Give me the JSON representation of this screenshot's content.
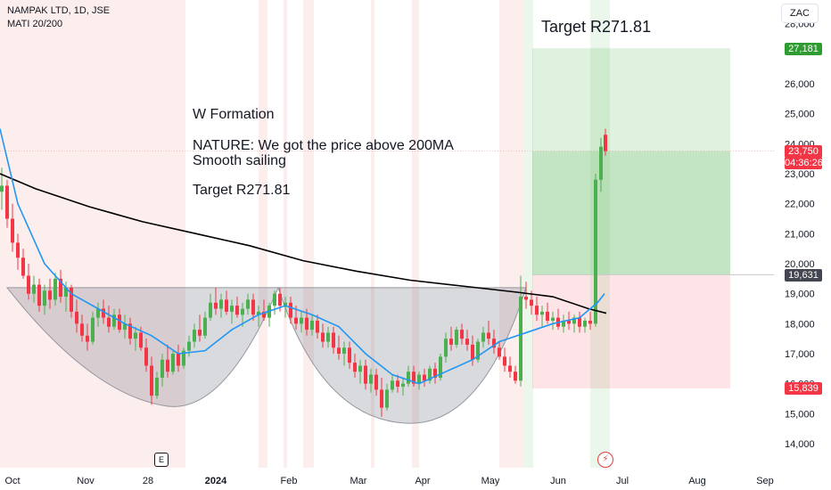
{
  "header": {
    "symbol_line": "NAMPAK LTD, 1D, JSE",
    "indicator": "MATI 20/200"
  },
  "currency": "ZAC",
  "annotations": {
    "line1": "W Formation",
    "line2": "NATURE: We got the price above 200MA",
    "line3": "Smooth sailing",
    "line4": "Target R271.81",
    "top_target": "Target R271.81"
  },
  "events": {
    "earnings": "E",
    "flash": "⚡"
  },
  "price_tags": [
    {
      "label": "27,181",
      "value": 27181,
      "color": "#2e9c31"
    },
    {
      "label": "23,750",
      "value": 23750,
      "color": "#f23645"
    },
    {
      "label": "04:36:26",
      "value": 23500,
      "color": "#f23645"
    },
    {
      "label": "19,631",
      "value": 19631,
      "color": "#434651"
    },
    {
      "label": "15,839",
      "value": 15839,
      "color": "#f23645"
    }
  ],
  "chart_data": {
    "type": "candlestick",
    "x_tick_labels": [
      "Oct",
      "Nov",
      "28",
      "2024",
      "Feb",
      "Mar",
      "Apr",
      "May",
      "Jun",
      "Jul",
      "Aug",
      "Sep"
    ],
    "y_tick_labels": [
      "28,000",
      "26,000",
      "25,000",
      "24,000",
      "23,000",
      "22,000",
      "21,000",
      "20,000",
      "19,000",
      "18,000",
      "17,000",
      "16,000",
      "15,000",
      "14,000"
    ],
    "y_ticks": [
      28000,
      26000,
      25000,
      24000,
      23000,
      22000,
      21000,
      20000,
      19000,
      18000,
      17000,
      16000,
      15000,
      14000
    ],
    "ylim": [
      13000,
      28500
    ],
    "ma20_color": "#2196f3",
    "ma200_color": "#000000",
    "up_color": "#4caf50",
    "down_color": "#f23645",
    "pattern_top": 19200,
    "position": {
      "entry": 19631,
      "target": 27181,
      "stop": 15839
    },
    "last_price": 23750,
    "ma200": [
      {
        "x": 0,
        "y": 23000
      },
      {
        "x": 40,
        "y": 22500
      },
      {
        "x": 100,
        "y": 21900
      },
      {
        "x": 160,
        "y": 21400
      },
      {
        "x": 220,
        "y": 21000
      },
      {
        "x": 280,
        "y": 20600
      },
      {
        "x": 340,
        "y": 20100
      },
      {
        "x": 400,
        "y": 19750
      },
      {
        "x": 460,
        "y": 19450
      },
      {
        "x": 520,
        "y": 19250
      },
      {
        "x": 580,
        "y": 19050
      },
      {
        "x": 620,
        "y": 18900
      },
      {
        "x": 660,
        "y": 18500
      },
      {
        "x": 680,
        "y": 18350
      }
    ],
    "ma20": [
      {
        "x": 0,
        "y": 24500
      },
      {
        "x": 20,
        "y": 22000
      },
      {
        "x": 50,
        "y": 20000
      },
      {
        "x": 80,
        "y": 19000
      },
      {
        "x": 110,
        "y": 18500
      },
      {
        "x": 140,
        "y": 18000
      },
      {
        "x": 170,
        "y": 17600
      },
      {
        "x": 200,
        "y": 17000
      },
      {
        "x": 230,
        "y": 17100
      },
      {
        "x": 260,
        "y": 17800
      },
      {
        "x": 290,
        "y": 18300
      },
      {
        "x": 320,
        "y": 18600
      },
      {
        "x": 350,
        "y": 18300
      },
      {
        "x": 380,
        "y": 17900
      },
      {
        "x": 410,
        "y": 17000
      },
      {
        "x": 440,
        "y": 16300
      },
      {
        "x": 470,
        "y": 16000
      },
      {
        "x": 500,
        "y": 16400
      },
      {
        "x": 530,
        "y": 16800
      },
      {
        "x": 560,
        "y": 17400
      },
      {
        "x": 590,
        "y": 17700
      },
      {
        "x": 620,
        "y": 18000
      },
      {
        "x": 650,
        "y": 18200
      },
      {
        "x": 670,
        "y": 18700
      },
      {
        "x": 678,
        "y": 19000
      }
    ],
    "candles": [
      {
        "x": 2,
        "o": 22400,
        "h": 23200,
        "l": 21800,
        "c": 22600
      },
      {
        "x": 8,
        "o": 22600,
        "h": 22800,
        "l": 21200,
        "c": 21500
      },
      {
        "x": 14,
        "o": 21500,
        "h": 22000,
        "l": 20400,
        "c": 20700
      },
      {
        "x": 20,
        "o": 20700,
        "h": 21000,
        "l": 19800,
        "c": 20200
      },
      {
        "x": 26,
        "o": 20200,
        "h": 20500,
        "l": 19500,
        "c": 19600
      },
      {
        "x": 32,
        "o": 19600,
        "h": 20000,
        "l": 18800,
        "c": 19000
      },
      {
        "x": 38,
        "o": 19000,
        "h": 19600,
        "l": 18700,
        "c": 19300
      },
      {
        "x": 44,
        "o": 19300,
        "h": 19500,
        "l": 18400,
        "c": 18600
      },
      {
        "x": 50,
        "o": 18600,
        "h": 19300,
        "l": 18300,
        "c": 19100
      },
      {
        "x": 56,
        "o": 19100,
        "h": 19500,
        "l": 18500,
        "c": 18800
      },
      {
        "x": 62,
        "o": 18800,
        "h": 19700,
        "l": 18600,
        "c": 19500
      },
      {
        "x": 68,
        "o": 19500,
        "h": 19800,
        "l": 18700,
        "c": 18900
      },
      {
        "x": 74,
        "o": 18900,
        "h": 19400,
        "l": 18400,
        "c": 19200
      },
      {
        "x": 80,
        "o": 19200,
        "h": 19300,
        "l": 18200,
        "c": 18400
      },
      {
        "x": 86,
        "o": 18400,
        "h": 18800,
        "l": 17700,
        "c": 18000
      },
      {
        "x": 92,
        "o": 18000,
        "h": 18300,
        "l": 17400,
        "c": 17600
      },
      {
        "x": 98,
        "o": 17600,
        "h": 18000,
        "l": 17100,
        "c": 17400
      },
      {
        "x": 104,
        "o": 17400,
        "h": 18400,
        "l": 17300,
        "c": 18200
      },
      {
        "x": 110,
        "o": 18200,
        "h": 18700,
        "l": 17900,
        "c": 18500
      },
      {
        "x": 116,
        "o": 18500,
        "h": 18800,
        "l": 18000,
        "c": 18200
      },
      {
        "x": 122,
        "o": 18200,
        "h": 18600,
        "l": 17700,
        "c": 17900
      },
      {
        "x": 128,
        "o": 17900,
        "h": 18500,
        "l": 17800,
        "c": 18300
      },
      {
        "x": 134,
        "o": 18300,
        "h": 18500,
        "l": 17700,
        "c": 17800
      },
      {
        "x": 140,
        "o": 17800,
        "h": 18300,
        "l": 17500,
        "c": 18000
      },
      {
        "x": 146,
        "o": 18000,
        "h": 18200,
        "l": 17300,
        "c": 17500
      },
      {
        "x": 152,
        "o": 17500,
        "h": 17900,
        "l": 17100,
        "c": 17700
      },
      {
        "x": 158,
        "o": 17700,
        "h": 17900,
        "l": 17100,
        "c": 17200
      },
      {
        "x": 164,
        "o": 17200,
        "h": 17500,
        "l": 16400,
        "c": 16600
      },
      {
        "x": 170,
        "o": 16600,
        "h": 16900,
        "l": 15300,
        "c": 15600
      },
      {
        "x": 176,
        "o": 15600,
        "h": 16400,
        "l": 15500,
        "c": 16200
      },
      {
        "x": 182,
        "o": 16200,
        "h": 17000,
        "l": 15900,
        "c": 16800
      },
      {
        "x": 188,
        "o": 16800,
        "h": 17300,
        "l": 16200,
        "c": 16400
      },
      {
        "x": 194,
        "o": 16400,
        "h": 17100,
        "l": 16300,
        "c": 17000
      },
      {
        "x": 200,
        "o": 17000,
        "h": 17300,
        "l": 16400,
        "c": 16600
      },
      {
        "x": 206,
        "o": 16600,
        "h": 17200,
        "l": 16500,
        "c": 17100
      },
      {
        "x": 212,
        "o": 17100,
        "h": 17600,
        "l": 16900,
        "c": 17400
      },
      {
        "x": 218,
        "o": 17400,
        "h": 18000,
        "l": 17200,
        "c": 17800
      },
      {
        "x": 224,
        "o": 17800,
        "h": 18300,
        "l": 17400,
        "c": 17600
      },
      {
        "x": 230,
        "o": 17600,
        "h": 18400,
        "l": 17500,
        "c": 18200
      },
      {
        "x": 236,
        "o": 18200,
        "h": 19000,
        "l": 18100,
        "c": 18700
      },
      {
        "x": 242,
        "o": 18700,
        "h": 19200,
        "l": 18300,
        "c": 18500
      },
      {
        "x": 248,
        "o": 18500,
        "h": 19000,
        "l": 18200,
        "c": 18800
      },
      {
        "x": 254,
        "o": 18800,
        "h": 19100,
        "l": 18300,
        "c": 18400
      },
      {
        "x": 260,
        "o": 18400,
        "h": 18800,
        "l": 18000,
        "c": 18600
      },
      {
        "x": 266,
        "o": 18600,
        "h": 18900,
        "l": 18200,
        "c": 18300
      },
      {
        "x": 272,
        "o": 18300,
        "h": 18700,
        "l": 17900,
        "c": 18500
      },
      {
        "x": 278,
        "o": 18500,
        "h": 19000,
        "l": 18300,
        "c": 18800
      },
      {
        "x": 284,
        "o": 18800,
        "h": 19000,
        "l": 18100,
        "c": 18300
      },
      {
        "x": 290,
        "o": 18300,
        "h": 18600,
        "l": 17900,
        "c": 18400
      },
      {
        "x": 296,
        "o": 18400,
        "h": 18800,
        "l": 18100,
        "c": 18200
      },
      {
        "x": 302,
        "o": 18200,
        "h": 18700,
        "l": 17900,
        "c": 18600
      },
      {
        "x": 308,
        "o": 18600,
        "h": 19100,
        "l": 18300,
        "c": 19000
      },
      {
        "x": 314,
        "o": 19000,
        "h": 19200,
        "l": 18400,
        "c": 18600
      },
      {
        "x": 320,
        "o": 18600,
        "h": 18900,
        "l": 18200,
        "c": 18700
      },
      {
        "x": 326,
        "o": 18700,
        "h": 18900,
        "l": 18000,
        "c": 18200
      },
      {
        "x": 332,
        "o": 18200,
        "h": 18600,
        "l": 17800,
        "c": 18000
      },
      {
        "x": 338,
        "o": 18000,
        "h": 18400,
        "l": 17700,
        "c": 18200
      },
      {
        "x": 344,
        "o": 18200,
        "h": 18500,
        "l": 17600,
        "c": 17800
      },
      {
        "x": 350,
        "o": 17800,
        "h": 18300,
        "l": 17600,
        "c": 18100
      },
      {
        "x": 356,
        "o": 18100,
        "h": 18300,
        "l": 17500,
        "c": 17700
      },
      {
        "x": 362,
        "o": 17700,
        "h": 18000,
        "l": 17200,
        "c": 17400
      },
      {
        "x": 368,
        "o": 17400,
        "h": 17900,
        "l": 17200,
        "c": 17700
      },
      {
        "x": 374,
        "o": 17700,
        "h": 17900,
        "l": 17000,
        "c": 17200
      },
      {
        "x": 380,
        "o": 17200,
        "h": 17600,
        "l": 16800,
        "c": 17000
      },
      {
        "x": 386,
        "o": 17000,
        "h": 17400,
        "l": 16600,
        "c": 17200
      },
      {
        "x": 392,
        "o": 17200,
        "h": 17400,
        "l": 16500,
        "c": 16700
      },
      {
        "x": 398,
        "o": 16700,
        "h": 17000,
        "l": 16200,
        "c": 16400
      },
      {
        "x": 404,
        "o": 16400,
        "h": 16800,
        "l": 16000,
        "c": 16600
      },
      {
        "x": 410,
        "o": 16600,
        "h": 16800,
        "l": 15800,
        "c": 16000
      },
      {
        "x": 416,
        "o": 16000,
        "h": 16500,
        "l": 15700,
        "c": 16300
      },
      {
        "x": 422,
        "o": 16300,
        "h": 16500,
        "l": 15600,
        "c": 15800
      },
      {
        "x": 428,
        "o": 15800,
        "h": 16200,
        "l": 14900,
        "c": 15200
      },
      {
        "x": 434,
        "o": 15200,
        "h": 16000,
        "l": 15100,
        "c": 15800
      },
      {
        "x": 440,
        "o": 15800,
        "h": 16300,
        "l": 15700,
        "c": 16100
      },
      {
        "x": 446,
        "o": 16100,
        "h": 16300,
        "l": 15700,
        "c": 15900
      },
      {
        "x": 452,
        "o": 15900,
        "h": 16200,
        "l": 15600,
        "c": 16000
      },
      {
        "x": 458,
        "o": 16000,
        "h": 16600,
        "l": 15900,
        "c": 16400
      },
      {
        "x": 464,
        "o": 16400,
        "h": 16600,
        "l": 15900,
        "c": 16000
      },
      {
        "x": 470,
        "o": 16000,
        "h": 16400,
        "l": 15800,
        "c": 16300
      },
      {
        "x": 476,
        "o": 16300,
        "h": 16500,
        "l": 15900,
        "c": 16100
      },
      {
        "x": 482,
        "o": 16100,
        "h": 16600,
        "l": 16000,
        "c": 16500
      },
      {
        "x": 488,
        "o": 16500,
        "h": 16700,
        "l": 16000,
        "c": 16200
      },
      {
        "x": 494,
        "o": 16200,
        "h": 17000,
        "l": 16100,
        "c": 16900
      },
      {
        "x": 500,
        "o": 16900,
        "h": 17700,
        "l": 16700,
        "c": 17500
      },
      {
        "x": 506,
        "o": 17500,
        "h": 17900,
        "l": 17100,
        "c": 17300
      },
      {
        "x": 512,
        "o": 17300,
        "h": 17900,
        "l": 17200,
        "c": 17800
      },
      {
        "x": 518,
        "o": 17800,
        "h": 18000,
        "l": 17300,
        "c": 17500
      },
      {
        "x": 524,
        "o": 17500,
        "h": 17800,
        "l": 17100,
        "c": 17300
      },
      {
        "x": 530,
        "o": 17300,
        "h": 17600,
        "l": 16600,
        "c": 16800
      },
      {
        "x": 536,
        "o": 16800,
        "h": 17500,
        "l": 16700,
        "c": 17400
      },
      {
        "x": 542,
        "o": 17400,
        "h": 17900,
        "l": 17200,
        "c": 17700
      },
      {
        "x": 548,
        "o": 17700,
        "h": 18100,
        "l": 17300,
        "c": 17500
      },
      {
        "x": 554,
        "o": 17500,
        "h": 17800,
        "l": 17000,
        "c": 17200
      },
      {
        "x": 560,
        "o": 17200,
        "h": 17400,
        "l": 16800,
        "c": 16900
      },
      {
        "x": 566,
        "o": 16900,
        "h": 17200,
        "l": 16400,
        "c": 16600
      },
      {
        "x": 572,
        "o": 16600,
        "h": 16900,
        "l": 16200,
        "c": 16400
      },
      {
        "x": 578,
        "o": 16400,
        "h": 16600,
        "l": 16000,
        "c": 16100
      },
      {
        "x": 584,
        "o": 16100,
        "h": 19600,
        "l": 15900,
        "c": 18900
      },
      {
        "x": 590,
        "o": 18900,
        "h": 19400,
        "l": 18500,
        "c": 18800
      },
      {
        "x": 596,
        "o": 18800,
        "h": 19100,
        "l": 18300,
        "c": 18600
      },
      {
        "x": 602,
        "o": 18600,
        "h": 18900,
        "l": 18100,
        "c": 18300
      },
      {
        "x": 608,
        "o": 18300,
        "h": 18600,
        "l": 17900,
        "c": 18400
      },
      {
        "x": 614,
        "o": 18400,
        "h": 18700,
        "l": 18000,
        "c": 18100
      },
      {
        "x": 620,
        "o": 18100,
        "h": 18400,
        "l": 17800,
        "c": 18200
      },
      {
        "x": 626,
        "o": 18200,
        "h": 18500,
        "l": 17800,
        "c": 17900
      },
      {
        "x": 632,
        "o": 17900,
        "h": 18300,
        "l": 17700,
        "c": 18100
      },
      {
        "x": 638,
        "o": 18100,
        "h": 18400,
        "l": 17800,
        "c": 18000
      },
      {
        "x": 644,
        "o": 18000,
        "h": 18300,
        "l": 17700,
        "c": 18200
      },
      {
        "x": 650,
        "o": 18200,
        "h": 18400,
        "l": 17700,
        "c": 17900
      },
      {
        "x": 656,
        "o": 17900,
        "h": 18200,
        "l": 17700,
        "c": 18100
      },
      {
        "x": 662,
        "o": 18100,
        "h": 18400,
        "l": 17800,
        "c": 18000
      },
      {
        "x": 668,
        "o": 18000,
        "h": 23000,
        "l": 17900,
        "c": 22800
      },
      {
        "x": 674,
        "o": 22800,
        "h": 24200,
        "l": 22400,
        "c": 23900
      },
      {
        "x": 679,
        "o": 24300,
        "h": 24500,
        "l": 23600,
        "c": 23750
      }
    ]
  }
}
